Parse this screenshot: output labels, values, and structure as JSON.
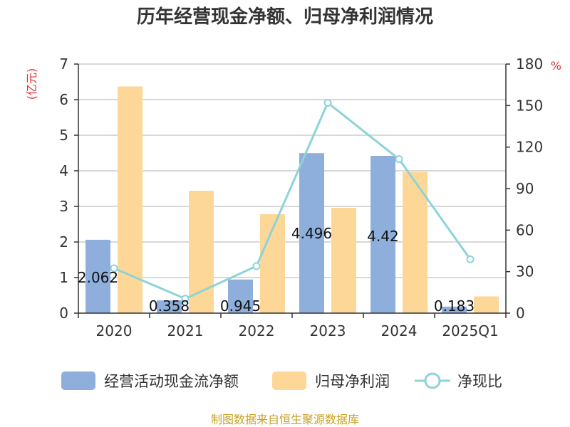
{
  "chart_data": {
    "type": "bar",
    "title": "历年经营现金净额、归母净利润情况",
    "categories": [
      "2020",
      "2021",
      "2022",
      "2023",
      "2024",
      "2025Q1"
    ],
    "series": [
      {
        "name": "经营活动现金流净额",
        "type": "bar",
        "axis": "left",
        "color": "#8eaedc",
        "values": [
          2.062,
          0.358,
          0.945,
          4.496,
          4.42,
          0.183
        ],
        "labels": [
          "2.062",
          "0.358",
          "0.945",
          "4.496",
          "4.42",
          "0.183"
        ]
      },
      {
        "name": "归母净利润",
        "type": "bar",
        "axis": "left",
        "color": "#fdd797",
        "values": [
          6.37,
          3.44,
          2.78,
          2.96,
          3.97,
          0.47
        ]
      },
      {
        "name": "净现比",
        "type": "line",
        "axis": "right",
        "color": "#8dd3d8",
        "values": [
          32.4,
          10.4,
          34.0,
          152.0,
          111.3,
          38.9
        ]
      }
    ],
    "y_left": {
      "unit": "(亿元)",
      "min": 0,
      "max": 7,
      "ticks": [
        "0",
        "1",
        "2",
        "3",
        "4",
        "5",
        "6",
        "7"
      ]
    },
    "y_right": {
      "unit": "%",
      "min": 0,
      "max": 180,
      "ticks": [
        "0",
        "30",
        "60",
        "90",
        "120",
        "150",
        "180"
      ]
    },
    "grid": true,
    "legend_position": "bottom",
    "source": "制图数据来自恒生聚源数据库"
  }
}
